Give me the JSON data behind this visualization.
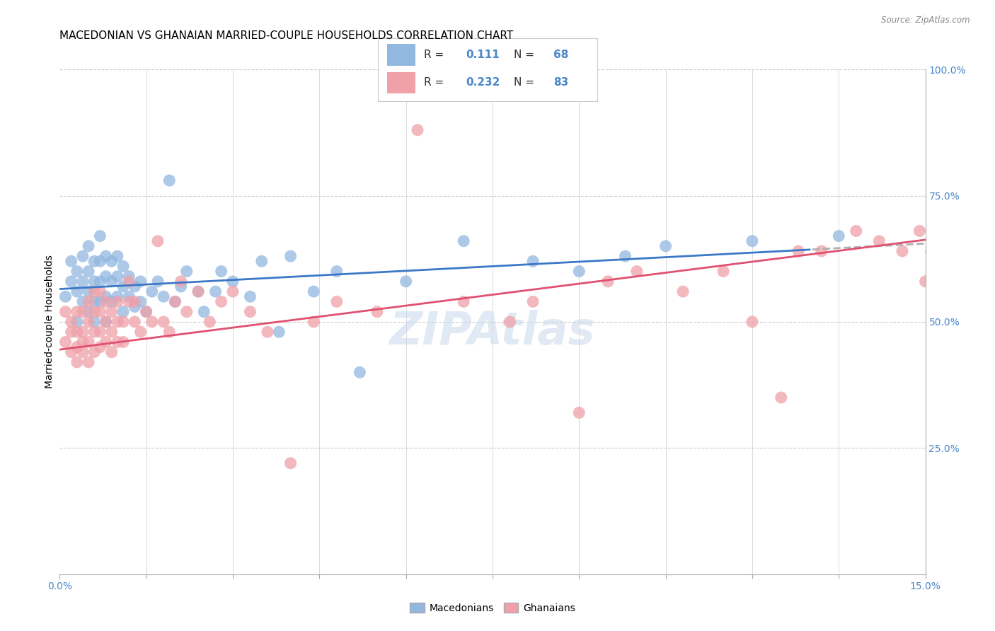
{
  "title": "MACEDONIAN VS GHANAIAN MARRIED-COUPLE HOUSEHOLDS CORRELATION CHART",
  "source": "Source: ZipAtlas.com",
  "ylabel": "Married-couple Households",
  "xlim": [
    0.0,
    0.15
  ],
  "ylim": [
    0.0,
    1.0
  ],
  "ytick_positions": [
    0.0,
    0.25,
    0.5,
    0.75,
    1.0
  ],
  "ytick_labels_right": [
    "",
    "25.0%",
    "50.0%",
    "75.0%",
    "100.0%"
  ],
  "blue_color": "#92b8e0",
  "pink_color": "#f0a0a8",
  "trend_blue_color": "#3c78c8",
  "trend_pink_color": "#e05070",
  "dashed_color": "#b0b0b0",
  "legend_R_blue": "0.111",
  "legend_N_blue": "68",
  "legend_R_pink": "0.232",
  "legend_N_pink": "83",
  "blue_intercept": 0.565,
  "blue_slope": 0.6,
  "pink_intercept": 0.445,
  "pink_slope": 1.45,
  "blue_scatter_x": [
    0.001,
    0.002,
    0.002,
    0.003,
    0.003,
    0.003,
    0.004,
    0.004,
    0.004,
    0.005,
    0.005,
    0.005,
    0.005,
    0.006,
    0.006,
    0.006,
    0.006,
    0.007,
    0.007,
    0.007,
    0.007,
    0.008,
    0.008,
    0.008,
    0.008,
    0.009,
    0.009,
    0.009,
    0.01,
    0.01,
    0.01,
    0.011,
    0.011,
    0.011,
    0.012,
    0.012,
    0.013,
    0.013,
    0.014,
    0.014,
    0.015,
    0.016,
    0.017,
    0.018,
    0.019,
    0.02,
    0.021,
    0.022,
    0.024,
    0.025,
    0.027,
    0.028,
    0.03,
    0.033,
    0.035,
    0.038,
    0.04,
    0.044,
    0.048,
    0.052,
    0.06,
    0.07,
    0.082,
    0.09,
    0.098,
    0.105,
    0.12,
    0.135
  ],
  "blue_scatter_y": [
    0.55,
    0.58,
    0.62,
    0.5,
    0.56,
    0.6,
    0.54,
    0.58,
    0.63,
    0.52,
    0.56,
    0.6,
    0.65,
    0.5,
    0.54,
    0.58,
    0.62,
    0.54,
    0.58,
    0.62,
    0.67,
    0.5,
    0.55,
    0.59,
    0.63,
    0.54,
    0.58,
    0.62,
    0.55,
    0.59,
    0.63,
    0.52,
    0.57,
    0.61,
    0.55,
    0.59,
    0.53,
    0.57,
    0.54,
    0.58,
    0.52,
    0.56,
    0.58,
    0.55,
    0.78,
    0.54,
    0.57,
    0.6,
    0.56,
    0.52,
    0.56,
    0.6,
    0.58,
    0.55,
    0.62,
    0.48,
    0.63,
    0.56,
    0.6,
    0.4,
    0.58,
    0.66,
    0.62,
    0.6,
    0.63,
    0.65,
    0.66,
    0.67
  ],
  "pink_scatter_x": [
    0.001,
    0.001,
    0.002,
    0.002,
    0.002,
    0.003,
    0.003,
    0.003,
    0.003,
    0.004,
    0.004,
    0.004,
    0.004,
    0.005,
    0.005,
    0.005,
    0.005,
    0.006,
    0.006,
    0.006,
    0.006,
    0.007,
    0.007,
    0.007,
    0.007,
    0.008,
    0.008,
    0.008,
    0.009,
    0.009,
    0.009,
    0.01,
    0.01,
    0.01,
    0.011,
    0.011,
    0.012,
    0.012,
    0.013,
    0.013,
    0.014,
    0.015,
    0.016,
    0.017,
    0.018,
    0.019,
    0.02,
    0.021,
    0.022,
    0.024,
    0.026,
    0.028,
    0.03,
    0.033,
    0.036,
    0.04,
    0.044,
    0.048,
    0.055,
    0.062,
    0.07,
    0.078,
    0.082,
    0.09,
    0.095,
    0.1,
    0.108,
    0.115,
    0.12,
    0.125,
    0.128,
    0.132,
    0.138,
    0.142,
    0.146,
    0.149,
    0.15,
    0.151,
    0.152,
    0.153,
    0.154,
    0.155,
    0.156
  ],
  "pink_scatter_y": [
    0.52,
    0.46,
    0.5,
    0.44,
    0.48,
    0.45,
    0.48,
    0.52,
    0.42,
    0.46,
    0.44,
    0.48,
    0.52,
    0.42,
    0.46,
    0.5,
    0.54,
    0.44,
    0.48,
    0.52,
    0.56,
    0.45,
    0.48,
    0.52,
    0.56,
    0.46,
    0.5,
    0.54,
    0.44,
    0.48,
    0.52,
    0.46,
    0.5,
    0.54,
    0.46,
    0.5,
    0.54,
    0.58,
    0.5,
    0.54,
    0.48,
    0.52,
    0.5,
    0.66,
    0.5,
    0.48,
    0.54,
    0.58,
    0.52,
    0.56,
    0.5,
    0.54,
    0.56,
    0.52,
    0.48,
    0.22,
    0.5,
    0.54,
    0.52,
    0.88,
    0.54,
    0.5,
    0.54,
    0.32,
    0.58,
    0.6,
    0.56,
    0.6,
    0.5,
    0.35,
    0.64,
    0.64,
    0.68,
    0.66,
    0.64,
    0.68,
    0.58,
    0.64,
    0.62,
    0.68,
    0.66,
    0.64,
    0.68
  ],
  "watermark_text": "ZIPAtlas",
  "background_color": "#ffffff",
  "grid_color": "#cccccc",
  "axis_color": "#4a86c8",
  "title_fontsize": 11,
  "label_fontsize": 10,
  "tick_fontsize": 10,
  "legend_fontsize": 11
}
